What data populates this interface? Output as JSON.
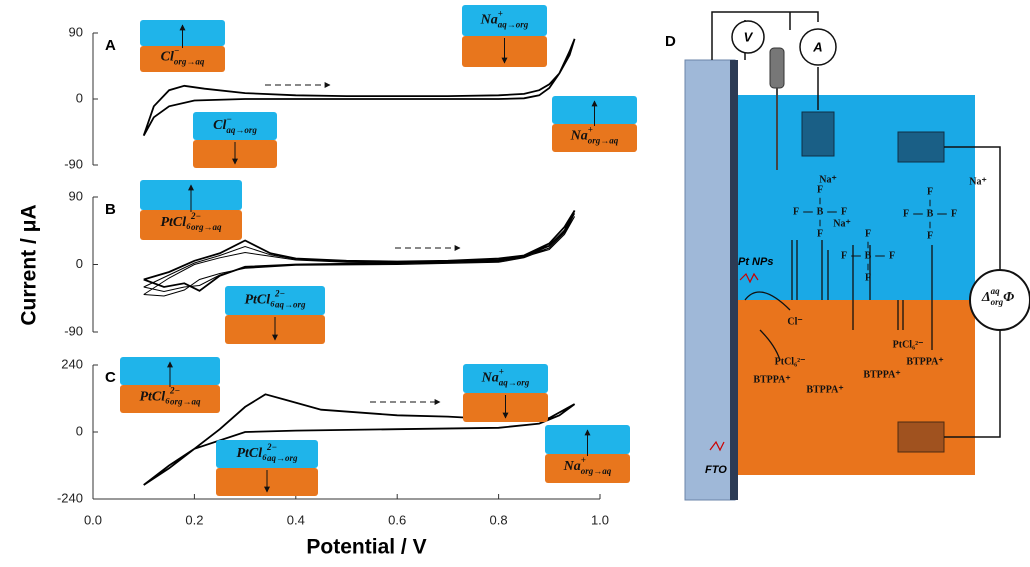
{
  "chart_data": [
    {
      "type": "line",
      "label": "A",
      "xlim": [
        0,
        1
      ],
      "ylim": [
        -90,
        90
      ],
      "yticks": [
        -90,
        0,
        90
      ],
      "series": [
        {
          "color": "#000000",
          "x": [
            0.1,
            0.12,
            0.15,
            0.18,
            0.22,
            0.3,
            0.4,
            0.5,
            0.6,
            0.7,
            0.8,
            0.85,
            0.88,
            0.9,
            0.92,
            0.94,
            0.95,
            0.94,
            0.92,
            0.9,
            0.88,
            0.85,
            0.8,
            0.6,
            0.4,
            0.3,
            0.2,
            0.15,
            0.12,
            0.1
          ],
          "values": [
            -50,
            -10,
            12,
            18,
            14,
            8,
            5,
            4,
            4,
            4,
            5,
            7,
            12,
            20,
            35,
            60,
            82,
            65,
            35,
            15,
            5,
            1,
            0,
            0,
            0,
            0,
            -2,
            -10,
            -25,
            -50
          ]
        }
      ],
      "annotations": [
        {
          "base": "Cl",
          "sup": "−",
          "sub": "org→aq"
        },
        {
          "base": "Na",
          "sup": "+",
          "sub": "aq→org"
        },
        {
          "base": "Na",
          "sup": "+",
          "sub": "org→aq"
        },
        {
          "base": "Cl",
          "sup": "−",
          "sub": "aq→org"
        }
      ]
    },
    {
      "type": "line",
      "label": "B",
      "ylabel": "Current / μA",
      "xlim": [
        0,
        1
      ],
      "ylim": [
        -90,
        90
      ],
      "yticks": [
        -90,
        0,
        90
      ],
      "series": [
        {
          "color": "#000000",
          "x": [
            0.1,
            0.15,
            0.2,
            0.25,
            0.3,
            0.35,
            0.4,
            0.5,
            0.6,
            0.7,
            0.8,
            0.85,
            0.9,
            0.93,
            0.95,
            0.93,
            0.9,
            0.85,
            0.8,
            0.6,
            0.4,
            0.3,
            0.25,
            0.21,
            0.18,
            0.14,
            0.1
          ],
          "values": [
            -20,
            -10,
            5,
            15,
            32,
            15,
            8,
            5,
            4,
            5,
            8,
            12,
            25,
            45,
            72,
            50,
            28,
            12,
            5,
            2,
            0,
            -3,
            -15,
            -35,
            -25,
            -30,
            -20
          ]
        },
        {
          "color": "#000000",
          "x": [
            0.1,
            0.15,
            0.2,
            0.25,
            0.3,
            0.35,
            0.4,
            0.5,
            0.6,
            0.7,
            0.8,
            0.85,
            0.9,
            0.93,
            0.95,
            0.93,
            0.9,
            0.85,
            0.8,
            0.6,
            0.4,
            0.3,
            0.25,
            0.21,
            0.18,
            0.14,
            0.1
          ],
          "values": [
            -30,
            -14,
            2,
            12,
            24,
            13,
            7,
            4,
            3,
            4,
            7,
            11,
            22,
            42,
            68,
            46,
            25,
            10,
            4,
            1,
            0,
            -4,
            -14,
            -28,
            -30,
            -36,
            -30
          ]
        },
        {
          "color": "#000000",
          "x": [
            0.1,
            0.15,
            0.2,
            0.25,
            0.3,
            0.35,
            0.4,
            0.5,
            0.6,
            0.7,
            0.8,
            0.85,
            0.9,
            0.93,
            0.95,
            0.93,
            0.9,
            0.85,
            0.8,
            0.6,
            0.4,
            0.3,
            0.25,
            0.21,
            0.18,
            0.14,
            0.1
          ],
          "values": [
            -40,
            -18,
            0,
            9,
            16,
            11,
            6,
            3,
            2,
            3,
            6,
            10,
            20,
            40,
            64,
            43,
            22,
            9,
            3,
            0,
            -1,
            -5,
            -12,
            -20,
            -34,
            -42,
            -40
          ]
        }
      ],
      "annotations": [
        {
          "base": "PtCl₆",
          "sup": "2−",
          "sub": "org→aq"
        },
        {
          "base": "PtCl₆",
          "sup": "2−",
          "sub": "aq→org"
        }
      ]
    },
    {
      "type": "line",
      "label": "C",
      "xlabel": "Potential / V",
      "xlim": [
        0,
        1
      ],
      "ylim": [
        -240,
        240
      ],
      "yticks": [
        -240,
        0,
        240
      ],
      "xticks": [
        {
          "value": 0,
          "label": "0.0"
        },
        0.2,
        0.4,
        0.6,
        0.8,
        {
          "value": 1,
          "label": "1.0"
        }
      ],
      "series": [
        {
          "color": "#000000",
          "x": [
            0.1,
            0.15,
            0.2,
            0.25,
            0.3,
            0.34,
            0.38,
            0.45,
            0.6,
            0.7,
            0.8,
            0.85,
            0.9,
            0.95,
            0.92,
            0.88,
            0.8,
            0.6,
            0.4,
            0.3,
            0.2,
            0.15,
            0.1
          ],
          "values": [
            -190,
            -130,
            -60,
            10,
            90,
            135,
            115,
            80,
            60,
            55,
            45,
            40,
            50,
            100,
            60,
            30,
            15,
            10,
            5,
            0,
            -60,
            -120,
            -190
          ]
        }
      ],
      "annotations": [
        {
          "base": "PtCl₆",
          "sup": "2−",
          "sub": "org→aq"
        },
        {
          "base": "Na",
          "sup": "+",
          "sub": "aq→org"
        },
        {
          "base": "PtCl₆",
          "sup": "2−",
          "sub": "aq→org"
        },
        {
          "base": "Na",
          "sup": "+",
          "sub": "org→aq"
        }
      ]
    }
  ],
  "diagram": {
    "label": "D",
    "voltmeter": "V",
    "ammeter": "A",
    "pt_nps": "Pt NPs",
    "fto": "FTO",
    "cation": "Na⁺",
    "anion_center": "B",
    "anion_ligand": "F",
    "chloride": "Cl⁻",
    "hexachloroplatinate": "PtCl₆²⁻",
    "organic_cation": "BTPPA⁺",
    "potential": {
      "base": "Δ",
      "sup": "aq",
      "sub": "org",
      "tail": "Φ"
    }
  }
}
